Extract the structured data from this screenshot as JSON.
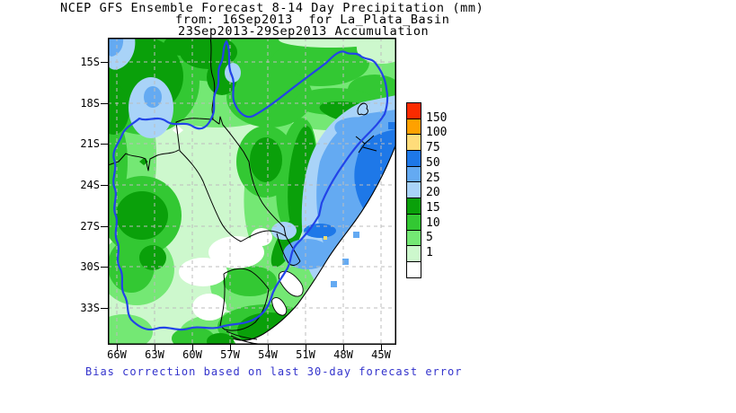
{
  "title": {
    "line1": "NCEP GFS Ensemble Forecast 8-14 Day Precipitation (mm)",
    "line2": "from: 16Sep2013  for La_Plata_Basin",
    "line3": "23Sep2013-29Sep2013 Accumulation"
  },
  "caption": {
    "text": "Bias correction based on last 30-day forecast error",
    "color": "#3333CC"
  },
  "axes": {
    "lat_labels": [
      "15S",
      "18S",
      "21S",
      "24S",
      "27S",
      "30S",
      "33S"
    ],
    "lon_labels": [
      "66W",
      "63W",
      "60W",
      "57W",
      "54W",
      "51W",
      "48W",
      "45W"
    ]
  },
  "legend": {
    "boundary_labels": [
      "150",
      "100",
      "75",
      "50",
      "25",
      "20",
      "15",
      "10",
      "5",
      "1"
    ],
    "swatches": [
      {
        "color": "#FB2B00",
        "range": ">150"
      },
      {
        "color": "#FFA100",
        "range": "100-150"
      },
      {
        "color": "#FFDC7A",
        "range": "75-100"
      },
      {
        "color": "#1E78E8",
        "range": "50-75"
      },
      {
        "color": "#64AAF2",
        "range": "25-50"
      },
      {
        "color": "#A9D3F8",
        "range": "20-25"
      },
      {
        "color": "#0AA00A",
        "range": "15-20"
      },
      {
        "color": "#33C833",
        "range": "10-15"
      },
      {
        "color": "#74E874",
        "range": "5-10"
      },
      {
        "color": "#CDF8CD",
        "range": "1-5"
      },
      {
        "color": "#FFFFFF",
        "range": "<1"
      }
    ]
  },
  "chart_data": {
    "type": "heatmap",
    "title": "NCEP GFS Ensemble Forecast 8-14 Day Precipitation (mm)",
    "units": "mm",
    "region": "La_Plata_Basin",
    "init_date": "16Sep2013",
    "valid_period": "23Sep2013-29Sep2013 Accumulation",
    "lat_ticks": [
      "15S",
      "18S",
      "21S",
      "24S",
      "27S",
      "30S",
      "33S"
    ],
    "lon_ticks": [
      "66W",
      "63W",
      "60W",
      "57W",
      "54W",
      "51W",
      "48W",
      "45W"
    ],
    "scale_levels_mm": [
      1,
      5,
      10,
      15,
      20,
      25,
      50,
      75,
      100,
      150
    ],
    "scale_colors": [
      "#FFFFFF",
      "#CDF8CD",
      "#74E874",
      "#33C833",
      "#0AA00A",
      "#A9D3F8",
      "#64AAF2",
      "#1E78E8",
      "#FFDC7A",
      "#FFA100",
      "#FB2B00"
    ],
    "visible_max_band_mm": "50-75",
    "features": [
      "50-75 mm maximum band along the southeast Brazil coast near 22-26S, 44-47W",
      "25-50 mm region covering the coastal southern Brazil sector",
      "20-25 mm patches in the northwest near 18-20S, 62-64W and top-left corner",
      "15-20 mm cores over the upper basin, central-left area and near 30-31S inland",
      "white (<1 mm) pockets over western Paraguay / northeast Argentina around 27-31S",
      "blue outline of La Plata Basin drainage boundary",
      "black country borders and Atlantic coastline, white ocean at lower right"
    ]
  }
}
